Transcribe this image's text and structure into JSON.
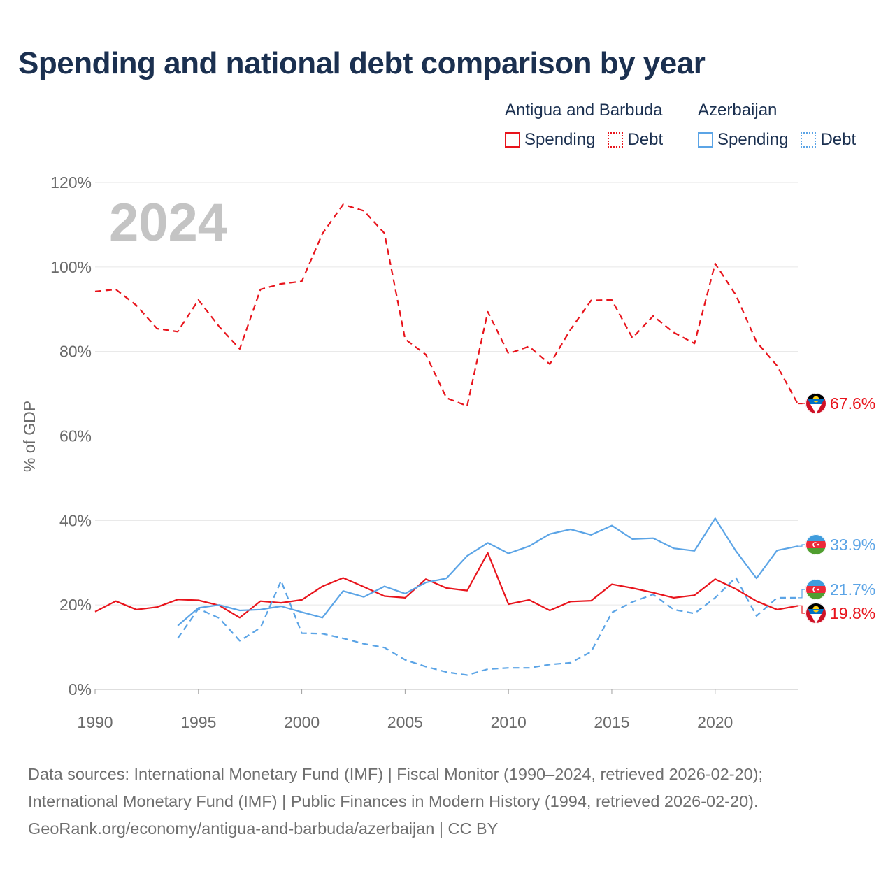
{
  "title": "Spending and national debt comparison by year",
  "legend": {
    "groups": [
      {
        "name": "Antigua and Barbuda",
        "color": "#e8141c",
        "items": [
          {
            "label": "Spending",
            "style": "solid"
          },
          {
            "label": "Debt",
            "style": "dotted"
          }
        ]
      },
      {
        "name": "Azerbaijan",
        "color": "#5ba4e6",
        "items": [
          {
            "label": "Spending",
            "style": "solid"
          },
          {
            "label": "Debt",
            "style": "dotted"
          }
        ]
      }
    ]
  },
  "sources": {
    "line1": "Data sources: International Monetary Fund (IMF) | Fiscal Monitor (1990–2024, retrieved 2026-02-20);",
    "line2": "International Monetary Fund (IMF) | Public Finances in Modern History (1994, retrieved 2026-02-20).",
    "line3": "GeoRank.org/economy/antigua-and-barbuda/azerbaijan | CC BY"
  },
  "chart_data": {
    "type": "line",
    "year_label": "2024",
    "ylabel": "% of GDP",
    "xlim": [
      1990,
      2024
    ],
    "ylim": [
      0,
      120
    ],
    "grid": true,
    "x_ticks": [
      1990,
      1995,
      2000,
      2005,
      2010,
      2015,
      2020
    ],
    "y_ticks": [
      {
        "value": 0,
        "label": "0%"
      },
      {
        "value": 20,
        "label": "20%"
      },
      {
        "value": 40,
        "label": "40%"
      },
      {
        "value": 60,
        "label": "60%"
      },
      {
        "value": 80,
        "label": "80%"
      },
      {
        "value": 100,
        "label": "100%"
      },
      {
        "value": 120,
        "label": "120%"
      }
    ],
    "series": [
      {
        "name": "Antigua and Barbuda Debt",
        "country": "Antigua and Barbuda",
        "metric": "Debt",
        "color": "#e8141c",
        "dashed": true,
        "end_label": "67.6%",
        "flag": "antigua-flag",
        "x": [
          1990,
          1991,
          1992,
          1993,
          1994,
          1995,
          1996,
          1997,
          1998,
          1999,
          2000,
          2001,
          2002,
          2003,
          2004,
          2005,
          2006,
          2007,
          2008,
          2009,
          2010,
          2011,
          2012,
          2013,
          2014,
          2015,
          2016,
          2017,
          2018,
          2019,
          2020,
          2021,
          2022,
          2023,
          2024
        ],
        "values": [
          94.2,
          94.7,
          90.9,
          85.4,
          84.7,
          92.2,
          85.9,
          80.6,
          94.7,
          96.0,
          96.6,
          107.9,
          114.8,
          113.3,
          108.0,
          82.9,
          79.3,
          69.0,
          67.1,
          89.4,
          79.5,
          81.2,
          77.0,
          85.2,
          92.1,
          92.2,
          83.2,
          88.4,
          84.5,
          81.9,
          100.8,
          93.4,
          82.3,
          76.6,
          67.6
        ]
      },
      {
        "name": "Antigua and Barbuda Spending",
        "country": "Antigua and Barbuda",
        "metric": "Spending",
        "color": "#e8141c",
        "dashed": false,
        "end_label": "19.8%",
        "flag": "antigua-flag",
        "x": [
          1990,
          1991,
          1992,
          1993,
          1994,
          1995,
          1996,
          1997,
          1998,
          1999,
          2000,
          2001,
          2002,
          2003,
          2004,
          2005,
          2006,
          2007,
          2008,
          2009,
          2010,
          2011,
          2012,
          2013,
          2014,
          2015,
          2016,
          2017,
          2018,
          2019,
          2020,
          2021,
          2022,
          2023,
          2024
        ],
        "values": [
          18.4,
          20.9,
          18.9,
          19.5,
          21.3,
          21.1,
          19.9,
          17.0,
          20.9,
          20.5,
          21.2,
          24.4,
          26.4,
          24.3,
          22.1,
          21.7,
          26.1,
          24.0,
          23.4,
          32.3,
          20.2,
          21.2,
          18.7,
          20.8,
          21.0,
          24.9,
          24.0,
          22.9,
          21.7,
          22.3,
          26.1,
          23.8,
          20.9,
          18.9,
          19.8
        ]
      },
      {
        "name": "Azerbaijan Spending",
        "country": "Azerbaijan",
        "metric": "Spending",
        "color": "#5ba4e6",
        "dashed": false,
        "end_label": "33.9%",
        "flag": "azerbaijan-flag",
        "x": [
          1994,
          1995,
          1996,
          1997,
          1998,
          1999,
          2000,
          2001,
          2002,
          2003,
          2004,
          2005,
          2006,
          2007,
          2008,
          2009,
          2010,
          2011,
          2012,
          2013,
          2014,
          2015,
          2016,
          2017,
          2018,
          2019,
          2020,
          2021,
          2022,
          2023,
          2024
        ],
        "values": [
          15.1,
          19.3,
          20.0,
          18.7,
          18.9,
          19.7,
          18.3,
          17.0,
          23.3,
          21.9,
          24.4,
          22.7,
          25.3,
          26.3,
          31.6,
          34.7,
          32.2,
          33.9,
          36.8,
          37.9,
          36.6,
          38.8,
          35.6,
          35.8,
          33.4,
          32.8,
          40.5,
          32.8,
          26.3,
          32.9,
          33.9
        ]
      },
      {
        "name": "Azerbaijan Debt",
        "country": "Azerbaijan",
        "metric": "Debt",
        "color": "#5ba4e6",
        "dashed": true,
        "end_label": "21.7%",
        "flag": "azerbaijan-flag",
        "x": [
          1994,
          1995,
          1996,
          1997,
          1998,
          1999,
          2000,
          2001,
          2002,
          2003,
          2004,
          2005,
          2006,
          2007,
          2008,
          2009,
          2010,
          2011,
          2012,
          2013,
          2014,
          2015,
          2016,
          2017,
          2018,
          2019,
          2020,
          2021,
          2022,
          2023,
          2024
        ],
        "values": [
          12.1,
          19.1,
          16.9,
          11.5,
          14.6,
          25.7,
          13.3,
          13.2,
          12.1,
          10.8,
          9.9,
          7.0,
          5.4,
          4.1,
          3.4,
          4.8,
          5.1,
          5.1,
          5.9,
          6.3,
          8.9,
          18.2,
          20.7,
          22.5,
          18.9,
          18.0,
          21.7,
          26.5,
          17.4,
          21.7,
          21.7
        ]
      }
    ]
  }
}
